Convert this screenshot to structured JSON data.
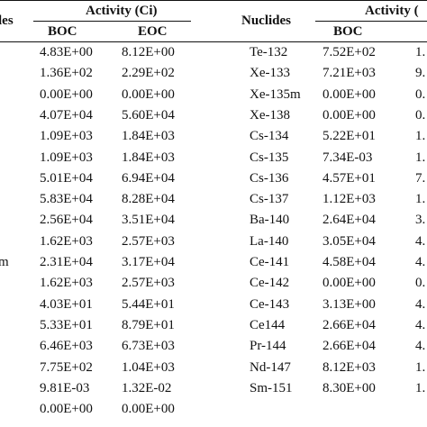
{
  "header": {
    "left_nuclides_fragment": "les",
    "left_activity": "Activity (Ci)",
    "left_boc": "BOC",
    "left_eoc": "EOC",
    "right_nuclides": "Nuclides",
    "right_activity": "Activity (",
    "right_boc": "BOC"
  },
  "left_table": {
    "rows": [
      {
        "nuclide": "",
        "boc": "4.83E+00",
        "eoc": "8.12E+00"
      },
      {
        "nuclide": "",
        "boc": "1.36E+02",
        "eoc": "2.29E+02"
      },
      {
        "nuclide": "",
        "boc": "0.00E+00",
        "eoc": "0.00E+00"
      },
      {
        "nuclide": "",
        "boc": "4.07E+04",
        "eoc": "5.60E+04"
      },
      {
        "nuclide": "",
        "boc": "1.09E+03",
        "eoc": "1.84E+03"
      },
      {
        "nuclide": "",
        "boc": "1.09E+03",
        "eoc": "1.84E+03"
      },
      {
        "nuclide": "",
        "boc": "5.01E+04",
        "eoc": "6.94E+04"
      },
      {
        "nuclide": "",
        "boc": "5.83E+04",
        "eoc": "8.28E+04"
      },
      {
        "nuclide": "",
        "boc": "2.56E+04",
        "eoc": "3.51E+04"
      },
      {
        "nuclide": "",
        "boc": "1.62E+03",
        "eoc": "2.57E+03"
      },
      {
        "nuclide": "m",
        "boc": "2.31E+04",
        "eoc": "3.17E+04"
      },
      {
        "nuclide": "",
        "boc": "1.62E+03",
        "eoc": "2.57E+03"
      },
      {
        "nuclide": "",
        "boc": "4.03E+01",
        "eoc": "5.44E+01"
      },
      {
        "nuclide": "",
        "boc": "5.33E+01",
        "eoc": "8.79E+01"
      },
      {
        "nuclide": "",
        "boc": "6.46E+03",
        "eoc": "6.73E+03"
      },
      {
        "nuclide": "",
        "boc": "7.75E+02",
        "eoc": "1.04E+03"
      },
      {
        "nuclide": "",
        "boc": "9.81E-03",
        "eoc": "1.32E-02"
      },
      {
        "nuclide": "",
        "boc": "0.00E+00",
        "eoc": "0.00E+00"
      }
    ]
  },
  "right_table": {
    "rows": [
      {
        "nuclide": "Te-132",
        "boc": "7.52E+02",
        "eoc": "1."
      },
      {
        "nuclide": "Xe-133",
        "boc": "7.21E+03",
        "eoc": "9."
      },
      {
        "nuclide": "Xe-135m",
        "boc": "0.00E+00",
        "eoc": "0."
      },
      {
        "nuclide": "Xe-138",
        "boc": "0.00E+00",
        "eoc": "0."
      },
      {
        "nuclide": "Cs-134",
        "boc": "5.22E+01",
        "eoc": "1."
      },
      {
        "nuclide": "Cs-135",
        "boc": "7.34E-03",
        "eoc": "1."
      },
      {
        "nuclide": "Cs-136",
        "boc": "4.57E+01",
        "eoc": "7."
      },
      {
        "nuclide": "Cs-137",
        "boc": "1.12E+03",
        "eoc": "1."
      },
      {
        "nuclide": "Ba-140",
        "boc": "2.64E+04",
        "eoc": "3."
      },
      {
        "nuclide": "La-140",
        "boc": "3.05E+04",
        "eoc": "4."
      },
      {
        "nuclide": "Ce-141",
        "boc": "4.58E+04",
        "eoc": "4."
      },
      {
        "nuclide": "Ce-142",
        "boc": "0.00E+00",
        "eoc": "0."
      },
      {
        "nuclide": "Ce-143",
        "boc": "3.13E+00",
        "eoc": "4."
      },
      {
        "nuclide": "Ce144",
        "boc": "2.66E+04",
        "eoc": "4."
      },
      {
        "nuclide": "Pr-144",
        "boc": "2.66E+04",
        "eoc": "4."
      },
      {
        "nuclide": "Nd-147",
        "boc": "8.12E+03",
        "eoc": "1."
      },
      {
        "nuclide": "Sm-151",
        "boc": "8.30E+00",
        "eoc": "1."
      }
    ]
  }
}
